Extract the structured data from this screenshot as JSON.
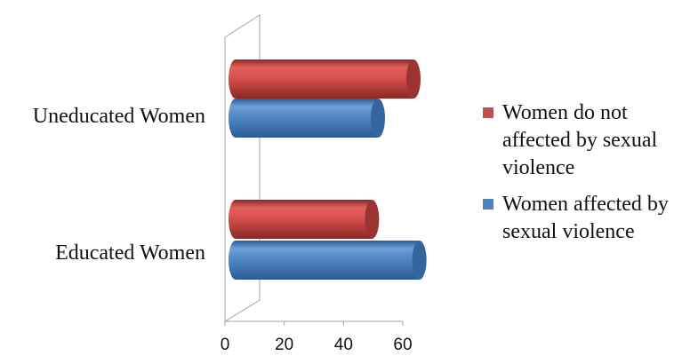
{
  "chart_data": {
    "type": "bar",
    "orientation": "horizontal",
    "style": "3d-cylinder",
    "categories": [
      "Uneducated Women",
      "Educated Women"
    ],
    "series": [
      {
        "name": "Women do not\naffected by  sexual\nviolence",
        "color": "#C0504D",
        "values": [
          60,
          46
        ]
      },
      {
        "name": "Women affected by\nsexual violence",
        "color": "#4F81BD",
        "values": [
          48,
          62
        ]
      }
    ],
    "xlim": [
      0,
      60
    ],
    "xticks": [
      "0",
      "20",
      "40",
      "60"
    ],
    "legend_position": "right",
    "grid": false
  }
}
